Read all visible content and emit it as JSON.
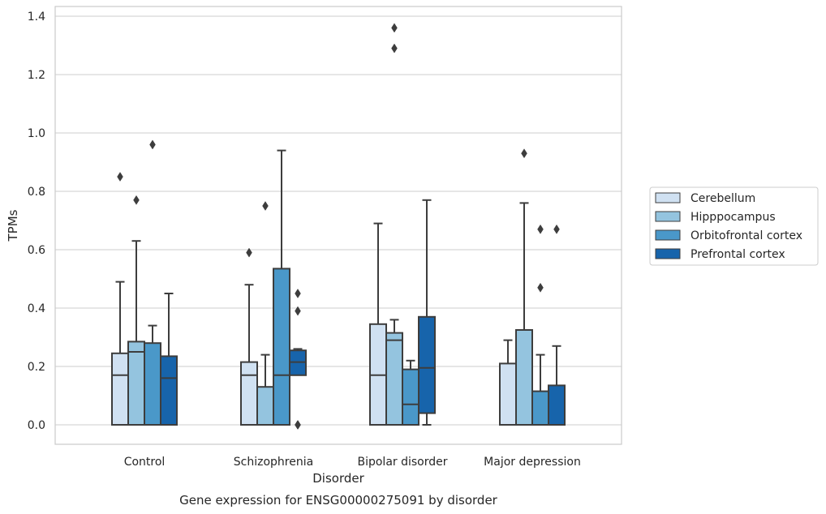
{
  "chart_data": {
    "type": "box",
    "title": "",
    "caption": "Gene expression for ENSG00000275091 by disorder",
    "xlabel": "Disorder",
    "ylabel": "TPMs",
    "ylim": [
      -0.065,
      1.43
    ],
    "yticks": [
      0.0,
      0.2,
      0.4,
      0.6,
      0.8,
      1.0,
      1.2,
      1.4
    ],
    "ytick_labels": [
      "0.0",
      "0.2",
      "0.4",
      "0.6",
      "0.8",
      "1.0",
      "1.2",
      "1.4"
    ],
    "grid": true,
    "legend_position": "right",
    "categories": [
      "Control",
      "Schizophrenia",
      "Bipolar disorder",
      "Major depression"
    ],
    "series": [
      {
        "name": "Cerebellum",
        "color": "#d0e1f2",
        "boxes": [
          {
            "whisker_low": 0.0,
            "q1": 0.0,
            "median": 0.17,
            "q3": 0.245,
            "whisker_high": 0.49,
            "outliers": [
              0.85
            ]
          },
          {
            "whisker_low": 0.0,
            "q1": 0.0,
            "median": 0.17,
            "q3": 0.215,
            "whisker_high": 0.48,
            "outliers": [
              0.59
            ]
          },
          {
            "whisker_low": 0.0,
            "q1": 0.0,
            "median": 0.17,
            "q3": 0.345,
            "whisker_high": 0.69,
            "outliers": []
          },
          {
            "whisker_low": 0.0,
            "q1": 0.0,
            "median": 0.0,
            "q3": 0.21,
            "whisker_high": 0.29,
            "outliers": []
          }
        ]
      },
      {
        "name": "Hipppocampus",
        "color": "#94c4df",
        "boxes": [
          {
            "whisker_low": 0.0,
            "q1": 0.0,
            "median": 0.25,
            "q3": 0.285,
            "whisker_high": 0.63,
            "outliers": [
              0.77
            ]
          },
          {
            "whisker_low": 0.0,
            "q1": 0.0,
            "median": 0.0,
            "q3": 0.13,
            "whisker_high": 0.24,
            "outliers": [
              0.75
            ]
          },
          {
            "whisker_low": 0.0,
            "q1": 0.0,
            "median": 0.29,
            "q3": 0.315,
            "whisker_high": 0.36,
            "outliers": [
              1.29,
              1.36
            ]
          },
          {
            "whisker_low": 0.0,
            "q1": 0.0,
            "median": 0.0,
            "q3": 0.325,
            "whisker_high": 0.76,
            "outliers": [
              0.93
            ]
          }
        ]
      },
      {
        "name": "Orbitofrontal cortex",
        "color": "#4a98c9",
        "boxes": [
          {
            "whisker_low": 0.0,
            "q1": 0.0,
            "median": 0.0,
            "q3": 0.28,
            "whisker_high": 0.34,
            "outliers": [
              0.96
            ]
          },
          {
            "whisker_low": 0.0,
            "q1": 0.0,
            "median": 0.17,
            "q3": 0.535,
            "whisker_high": 0.94,
            "outliers": []
          },
          {
            "whisker_low": 0.0,
            "q1": 0.0,
            "median": 0.07,
            "q3": 0.19,
            "whisker_high": 0.22,
            "outliers": []
          },
          {
            "whisker_low": 0.0,
            "q1": 0.0,
            "median": 0.0,
            "q3": 0.115,
            "whisker_high": 0.24,
            "outliers": [
              0.47,
              0.67
            ]
          }
        ]
      },
      {
        "name": "Prefrontal cortex",
        "color": "#1764ab",
        "boxes": [
          {
            "whisker_low": 0.0,
            "q1": 0.0,
            "median": 0.16,
            "q3": 0.235,
            "whisker_high": 0.45,
            "outliers": []
          },
          {
            "whisker_low": 0.17,
            "q1": 0.17,
            "median": 0.215,
            "q3": 0.255,
            "whisker_high": 0.26,
            "outliers": [
              0.0,
              0.0,
              0.39,
              0.45
            ]
          },
          {
            "whisker_low": 0.0,
            "q1": 0.04,
            "median": 0.195,
            "q3": 0.37,
            "whisker_high": 0.77,
            "outliers": []
          },
          {
            "whisker_low": 0.0,
            "q1": 0.0,
            "median": 0.0,
            "q3": 0.135,
            "whisker_high": 0.27,
            "outliers": [
              0.67
            ]
          }
        ]
      }
    ]
  }
}
